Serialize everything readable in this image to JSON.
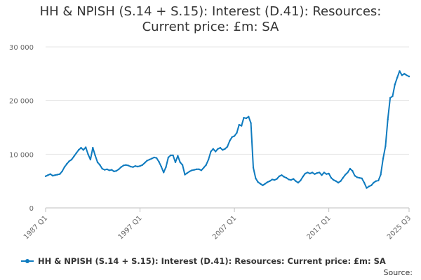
{
  "chart_data": {
    "type": "line",
    "title_line1": "HH & NPISH (S.14 + S.15): Interest (D.41): Resources:",
    "title_line2": "Current price: £m: SA",
    "xlabel": "",
    "ylabel": "",
    "ylim": [
      0,
      30000
    ],
    "yticks": [
      0,
      10000,
      20000,
      30000
    ],
    "ytick_labels": [
      "0",
      "10 000",
      "20 000",
      "30 000"
    ],
    "xlim": [
      1987.0,
      2025.5
    ],
    "xticks": [
      1987.0,
      1997.0,
      2007.0,
      2017.0,
      2025.5
    ],
    "xtick_labels": [
      "1987 Q1",
      "1997 Q1",
      "2007 Q1",
      "2017 Q1",
      "2025 Q3"
    ],
    "grid": true,
    "legend_position": "bottom",
    "source_label": "Source:",
    "color": "#0f7bbf",
    "series": [
      {
        "name": "HH & NPISH (S.14 + S.15): Interest (D.41): Resources: Current price: £m: SA",
        "points": [
          [
            1987.0,
            5900
          ],
          [
            1987.25,
            6100
          ],
          [
            1987.5,
            6300
          ],
          [
            1987.75,
            6000
          ],
          [
            1988.0,
            6100
          ],
          [
            1988.25,
            6200
          ],
          [
            1988.5,
            6300
          ],
          [
            1988.75,
            6800
          ],
          [
            1989.0,
            7600
          ],
          [
            1989.25,
            8200
          ],
          [
            1989.5,
            8700
          ],
          [
            1989.75,
            9000
          ],
          [
            1990.0,
            9600
          ],
          [
            1990.25,
            10200
          ],
          [
            1990.5,
            10800
          ],
          [
            1990.75,
            11200
          ],
          [
            1991.0,
            10800
          ],
          [
            1991.25,
            11300
          ],
          [
            1991.5,
            10000
          ],
          [
            1991.75,
            9000
          ],
          [
            1992.0,
            11200
          ],
          [
            1992.25,
            9800
          ],
          [
            1992.5,
            8500
          ],
          [
            1992.75,
            8000
          ],
          [
            1993.0,
            7300
          ],
          [
            1993.25,
            7100
          ],
          [
            1993.5,
            7200
          ],
          [
            1993.75,
            7000
          ],
          [
            1994.0,
            7100
          ],
          [
            1994.25,
            6800
          ],
          [
            1994.5,
            6900
          ],
          [
            1994.75,
            7200
          ],
          [
            1995.0,
            7600
          ],
          [
            1995.25,
            7900
          ],
          [
            1995.5,
            8000
          ],
          [
            1995.75,
            7900
          ],
          [
            1996.0,
            7700
          ],
          [
            1996.25,
            7600
          ],
          [
            1996.5,
            7800
          ],
          [
            1996.75,
            7700
          ],
          [
            1997.0,
            7800
          ],
          [
            1997.25,
            8000
          ],
          [
            1997.5,
            8400
          ],
          [
            1997.75,
            8800
          ],
          [
            1998.0,
            9000
          ],
          [
            1998.25,
            9200
          ],
          [
            1998.5,
            9400
          ],
          [
            1998.75,
            9300
          ],
          [
            1999.0,
            8600
          ],
          [
            1999.25,
            7700
          ],
          [
            1999.5,
            6600
          ],
          [
            1999.75,
            7600
          ],
          [
            2000.0,
            9400
          ],
          [
            2000.25,
            9800
          ],
          [
            2000.5,
            9800
          ],
          [
            2000.75,
            8500
          ],
          [
            2001.0,
            9700
          ],
          [
            2001.25,
            8500
          ],
          [
            2001.5,
            8000
          ],
          [
            2001.75,
            6200
          ],
          [
            2002.0,
            6500
          ],
          [
            2002.25,
            6800
          ],
          [
            2002.5,
            7000
          ],
          [
            2002.75,
            7100
          ],
          [
            2003.0,
            7200
          ],
          [
            2003.25,
            7200
          ],
          [
            2003.5,
            7000
          ],
          [
            2003.75,
            7500
          ],
          [
            2004.0,
            8000
          ],
          [
            2004.25,
            9000
          ],
          [
            2004.5,
            10500
          ],
          [
            2004.75,
            11000
          ],
          [
            2005.0,
            10500
          ],
          [
            2005.25,
            11000
          ],
          [
            2005.5,
            11200
          ],
          [
            2005.75,
            10800
          ],
          [
            2006.0,
            11000
          ],
          [
            2006.25,
            11400
          ],
          [
            2006.5,
            12500
          ],
          [
            2006.75,
            13200
          ],
          [
            2007.0,
            13400
          ],
          [
            2007.25,
            14000
          ],
          [
            2007.5,
            15500
          ],
          [
            2007.75,
            15300
          ],
          [
            2008.0,
            16800
          ],
          [
            2008.25,
            16700
          ],
          [
            2008.5,
            17000
          ],
          [
            2008.75,
            15800
          ],
          [
            2009.0,
            7500
          ],
          [
            2009.25,
            5500
          ],
          [
            2009.5,
            4800
          ],
          [
            2009.75,
            4500
          ],
          [
            2010.0,
            4200
          ],
          [
            2010.25,
            4500
          ],
          [
            2010.5,
            4800
          ],
          [
            2010.75,
            5000
          ],
          [
            2011.0,
            5300
          ],
          [
            2011.25,
            5200
          ],
          [
            2011.5,
            5400
          ],
          [
            2011.75,
            5900
          ],
          [
            2012.0,
            6100
          ],
          [
            2012.25,
            5800
          ],
          [
            2012.5,
            5600
          ],
          [
            2012.75,
            5300
          ],
          [
            2013.0,
            5200
          ],
          [
            2013.25,
            5400
          ],
          [
            2013.5,
            5000
          ],
          [
            2013.75,
            4700
          ],
          [
            2014.0,
            5100
          ],
          [
            2014.25,
            5800
          ],
          [
            2014.5,
            6400
          ],
          [
            2014.75,
            6600
          ],
          [
            2015.0,
            6400
          ],
          [
            2015.25,
            6600
          ],
          [
            2015.5,
            6300
          ],
          [
            2015.75,
            6500
          ],
          [
            2016.0,
            6600
          ],
          [
            2016.25,
            6100
          ],
          [
            2016.5,
            6600
          ],
          [
            2016.75,
            6300
          ],
          [
            2017.0,
            6400
          ],
          [
            2017.25,
            5600
          ],
          [
            2017.5,
            5200
          ],
          [
            2017.75,
            5000
          ],
          [
            2018.0,
            4700
          ],
          [
            2018.25,
            5000
          ],
          [
            2018.5,
            5600
          ],
          [
            2018.75,
            6200
          ],
          [
            2019.0,
            6600
          ],
          [
            2019.25,
            7300
          ],
          [
            2019.5,
            6900
          ],
          [
            2019.75,
            6000
          ],
          [
            2020.0,
            5700
          ],
          [
            2020.25,
            5600
          ],
          [
            2020.5,
            5500
          ],
          [
            2020.75,
            4700
          ],
          [
            2021.0,
            3700
          ],
          [
            2021.25,
            4000
          ],
          [
            2021.5,
            4200
          ],
          [
            2021.75,
            4700
          ],
          [
            2022.0,
            5000
          ],
          [
            2022.25,
            5100
          ],
          [
            2022.5,
            6200
          ],
          [
            2022.75,
            9200
          ],
          [
            2023.0,
            11500
          ],
          [
            2023.25,
            16500
          ],
          [
            2023.5,
            20500
          ],
          [
            2023.75,
            20800
          ],
          [
            2024.0,
            23000
          ],
          [
            2024.25,
            24300
          ],
          [
            2024.5,
            25500
          ],
          [
            2024.75,
            24700
          ],
          [
            2025.0,
            25000
          ],
          [
            2025.25,
            24700
          ],
          [
            2025.5,
            24500
          ]
        ]
      }
    ]
  }
}
